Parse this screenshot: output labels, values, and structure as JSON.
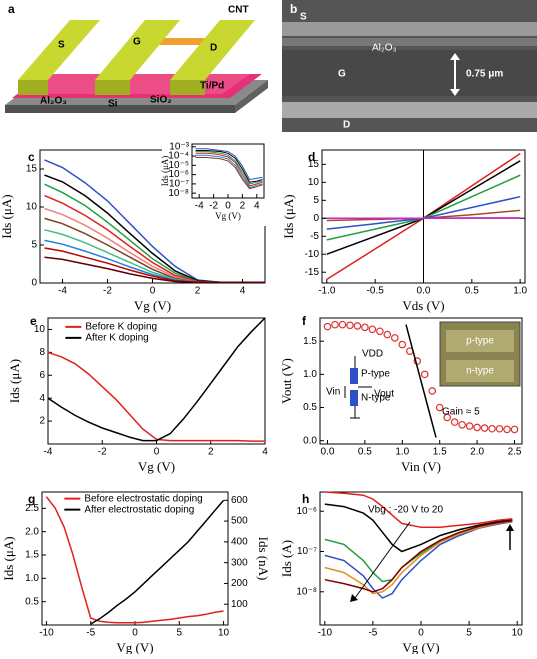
{
  "panel_a": {
    "label": "a",
    "texts": [
      "S",
      "G",
      "D",
      "CNT",
      "Ti/Pd",
      "Al₂O₃",
      "Si",
      "SiO₂"
    ]
  },
  "panel_b": {
    "label": "b",
    "texts": [
      "S",
      "Al₂O₃",
      "G",
      "0.75 μm",
      "D"
    ]
  },
  "chart_data": [
    {
      "type": "line",
      "panel_label": "c",
      "xlabel": "Vg (V)",
      "ylabel": "Ids (μA)",
      "x": [
        -4.8,
        -4,
        -3,
        -2,
        -1,
        0,
        1,
        2,
        3,
        4,
        5
      ],
      "xlim": [
        -5,
        5
      ],
      "ylim": [
        0,
        17.5
      ],
      "xticks": [
        -4,
        -2,
        0,
        2,
        4
      ],
      "yticks": [
        0,
        5,
        10,
        15
      ],
      "series": [
        {
          "color": "#3050c8",
          "values": [
            16.2,
            15.2,
            13.2,
            10.8,
            7.8,
            4.8,
            2.2,
            0.4,
            0.1,
            0.1,
            0.1
          ]
        },
        {
          "color": "#000000",
          "values": [
            14.2,
            13.3,
            11.5,
            9.2,
            6.5,
            3.9,
            1.6,
            0.3,
            0.1,
            0.1,
            0.1
          ]
        },
        {
          "color": "#20a040",
          "values": [
            13.0,
            11.9,
            10.2,
            8.0,
            5.6,
            3.2,
            1.3,
            0.2,
            0.1,
            0.1,
            0.1
          ]
        },
        {
          "color": "#e02020",
          "values": [
            11.5,
            10.5,
            8.9,
            7.0,
            4.8,
            2.7,
            1.0,
            0.2,
            0.1,
            0.1,
            0.1
          ]
        },
        {
          "color": "#f08080",
          "values": [
            9.8,
            9.0,
            7.6,
            5.9,
            4.0,
            2.2,
            0.8,
            0.1,
            0.1,
            0.1,
            0.1
          ]
        },
        {
          "color": "#804020",
          "values": [
            8.5,
            7.8,
            6.5,
            5.0,
            3.4,
            1.8,
            0.6,
            0.1,
            0.1,
            0.1,
            0.1
          ]
        },
        {
          "color": "#40c080",
          "values": [
            7.0,
            6.4,
            5.3,
            4.0,
            2.7,
            1.4,
            0.5,
            0.1,
            0.1,
            0.1,
            0.1
          ]
        },
        {
          "color": "#2080e0",
          "values": [
            5.6,
            5.1,
            4.2,
            3.2,
            2.1,
            1.1,
            0.4,
            0.1,
            0.1,
            0.1,
            0.1
          ]
        },
        {
          "color": "#c00000",
          "values": [
            4.6,
            4.2,
            3.4,
            2.6,
            1.7,
            0.9,
            0.3,
            0.1,
            0.1,
            0.1,
            0.1
          ]
        },
        {
          "color": "#600000",
          "values": [
            3.4,
            3.1,
            2.5,
            1.9,
            1.2,
            0.6,
            0.2,
            0.1,
            0.1,
            0.1,
            0.1
          ]
        }
      ]
    },
    {
      "type": "line",
      "xlabel": "Vg (V)",
      "ylabel": "Ids (μA)",
      "log_y": true,
      "x": [
        -4.5,
        -3,
        -2,
        -1,
        0,
        1,
        2,
        3,
        4,
        4.8
      ],
      "xlim": [
        -5,
        5
      ],
      "ylim": [
        3e-09,
        0.002
      ],
      "xticks": [
        -4,
        -2,
        0,
        2,
        4
      ],
      "yticks": [
        {
          "value": 0.001,
          "label": "10⁻³"
        },
        {
          "value": 0.0001,
          "label": "10⁻⁴"
        },
        {
          "value": 1e-05,
          "label": "10⁻⁵"
        },
        {
          "value": 1e-06,
          "label": "10⁻⁶"
        },
        {
          "value": 1e-07,
          "label": "10⁻⁷"
        },
        {
          "value": 1e-08,
          "label": "10⁻⁸"
        }
      ],
      "series": [
        {
          "color": "#3050c8",
          "values": [
            0.0006,
            0.0006,
            0.0005,
            0.0004,
            0.0003,
            0.0001,
            8e-06,
            3e-07,
            4e-07,
            5e-07
          ]
        },
        {
          "color": "#000000",
          "values": [
            0.0004,
            0.0004,
            0.00035,
            0.0003,
            0.0002,
            6e-05,
            4e-06,
            1.5e-07,
            2e-07,
            3e-07
          ]
        },
        {
          "color": "#20a040",
          "values": [
            0.0003,
            0.0003,
            0.00025,
            0.0002,
            0.00012,
            3e-05,
            2e-06,
            1e-07,
            1.5e-07,
            2e-07
          ]
        },
        {
          "color": "#e02020",
          "values": [
            0.0002,
            0.0002,
            0.00017,
            0.00013,
            8e-05,
            2e-05,
            1e-06,
            6e-08,
            1e-07,
            1.5e-07
          ]
        },
        {
          "color": "#2080e0",
          "values": [
            0.00012,
            0.00012,
            0.0001,
            8e-05,
            5e-05,
            1e-05,
            5e-07,
            4e-08,
            7e-08,
            1e-07
          ]
        },
        {
          "color": "#804020",
          "values": [
            7e-05,
            7e-05,
            6e-05,
            5e-05,
            3e-05,
            6e-06,
            3e-07,
            3e-08,
            5e-08,
            8e-08
          ]
        }
      ]
    },
    {
      "type": "line",
      "panel_label": "d",
      "xlabel": "Vds (V)",
      "ylabel": "Ids (μA)",
      "zero_lines": true,
      "x": [
        -1,
        -0.5,
        0,
        0.5,
        1
      ],
      "xlim": [
        -1.05,
        1.05
      ],
      "ylim": [
        -18,
        19
      ],
      "xticks": [
        {
          "value": -1,
          "label": "-1.0"
        },
        -0.5,
        {
          "value": 0,
          "label": "0.0"
        },
        0.5,
        {
          "value": 1,
          "label": "1.0"
        }
      ],
      "yticks": [
        -15,
        -10,
        -5,
        0,
        5,
        10,
        15
      ],
      "series": [
        {
          "color": "#e02020",
          "values": [
            -17,
            -8.5,
            0,
            9,
            18
          ]
        },
        {
          "color": "#000000",
          "values": [
            -10,
            -5,
            0,
            8,
            16
          ]
        },
        {
          "color": "#20a040",
          "values": [
            -6,
            -3,
            0,
            6,
            12
          ]
        },
        {
          "color": "#3050c8",
          "values": [
            -3,
            -1.5,
            0,
            3,
            6
          ]
        },
        {
          "color": "#a05020",
          "values": [
            -0.6,
            -0.3,
            0,
            1,
            2.2
          ]
        },
        {
          "color": "#d020d0",
          "values": [
            0,
            0,
            0,
            0.1,
            0.1
          ]
        }
      ]
    },
    {
      "type": "line",
      "panel_label": "e",
      "xlabel": "Vg (V)",
      "ylabel": "Ids (μA)",
      "legend": "upper left",
      "x": [
        -4,
        -3.5,
        -3,
        -2.5,
        -2,
        -1.5,
        -1,
        -0.5,
        0,
        0.5,
        1,
        1.5,
        2,
        2.5,
        3,
        3.5,
        4
      ],
      "xlim": [
        -4,
        4
      ],
      "ylim": [
        0,
        11
      ],
      "xticks": [
        -4,
        -2,
        0,
        2,
        4
      ],
      "yticks": [
        2,
        4,
        6,
        8,
        10
      ],
      "series": [
        {
          "name": "Before K doping",
          "color": "#e02020",
          "values": [
            8,
            7.6,
            7.0,
            6.1,
            5,
            3.9,
            2.6,
            1.3,
            0.4,
            0.3,
            0.3,
            0.3,
            0.3,
            0.3,
            0.3,
            0.25,
            0.25
          ]
        },
        {
          "name": "After K doping",
          "color": "#000000",
          "values": [
            4,
            3.2,
            2.5,
            1.9,
            1.4,
            1.0,
            0.6,
            0.3,
            0.3,
            0.9,
            2.2,
            3.7,
            5.3,
            6.9,
            8.5,
            9.8,
            11
          ]
        }
      ]
    },
    {
      "type": "line",
      "panel_label": "f",
      "xlabel": "Vin (V)",
      "ylabel": "Vout (V)",
      "x": [
        0,
        0.1,
        0.2,
        0.3,
        0.4,
        0.5,
        0.6,
        0.7,
        0.8,
        0.9,
        1.0,
        1.1,
        1.2,
        1.3,
        1.4,
        1.5,
        1.6,
        1.7,
        1.8,
        1.9,
        2.0,
        2.1,
        2.2,
        2.3,
        2.4,
        2.5
      ],
      "xlim": [
        -0.1,
        2.6
      ],
      "ylim": [
        -0.05,
        1.85
      ],
      "xticks": [
        {
          "value": 0,
          "label": "0.0"
        },
        0.5,
        {
          "value": 1,
          "label": "1.0"
        },
        1.5,
        {
          "value": 2,
          "label": "2.0"
        },
        2.5
      ],
      "yticks": [
        {
          "value": 0,
          "label": "0.0"
        },
        0.5,
        {
          "value": 1,
          "label": "1.0"
        },
        1.5
      ],
      "series": [
        {
          "color": "#e03030",
          "marker": "circle",
          "values": [
            1.72,
            1.75,
            1.75,
            1.74,
            1.73,
            1.71,
            1.68,
            1.65,
            1.6,
            1.55,
            1.45,
            1.35,
            1.2,
            1.0,
            0.75,
            0.5,
            0.35,
            0.28,
            0.24,
            0.22,
            0.2,
            0.19,
            0.18,
            0.18,
            0.17,
            0.17
          ]
        },
        {
          "color": "#000000",
          "x": [
            1.05,
            1.45
          ],
          "values": [
            1.75,
            0.05
          ]
        }
      ],
      "annotations": [
        "Gain ≈ 5",
        "VDD",
        "P-type",
        "Vin",
        "Vout",
        "N-type",
        "p-type",
        "n-type"
      ]
    },
    {
      "type": "line",
      "panel_label": "g",
      "xlabel": "Vg (V)",
      "ylabel": "Ids (μA)",
      "y2label": "Ids (nA)",
      "legend": "upper center",
      "x": [
        -10,
        -9,
        -8,
        -7,
        -6,
        -5,
        -4,
        -3,
        -2,
        -1,
        0,
        1,
        2,
        3,
        4,
        5,
        6,
        7,
        8,
        9,
        10
      ],
      "xlim": [
        -10.5,
        10.5
      ],
      "ylim": [
        0,
        2.85
      ],
      "y2lim": [
        0,
        640
      ],
      "xticks": [
        -10,
        -5,
        0,
        5,
        10
      ],
      "yticks": [
        0.5,
        {
          "value": 1,
          "label": "1.0"
        },
        1.5,
        {
          "value": 2,
          "label": "2.0"
        },
        2.5
      ],
      "y2ticks": [
        100,
        200,
        300,
        400,
        500,
        600
      ],
      "series": [
        {
          "name": "Before electrostatic doping",
          "color": "#e02020",
          "values": [
            2.75,
            2.5,
            2.1,
            1.5,
            0.8,
            0.15,
            0.08,
            0.06,
            0.05,
            0.05,
            0.05,
            0.06,
            0.08,
            0.1,
            0.12,
            0.15,
            0.18,
            0.2,
            0.23,
            0.27,
            0.3
          ]
        },
        {
          "name": "After electrostatic doping",
          "color": "#000000",
          "axis": "y2",
          "values": [
            null,
            null,
            null,
            null,
            null,
            5,
            30,
            60,
            95,
            125,
            160,
            200,
            240,
            280,
            320,
            360,
            400,
            450,
            500,
            550,
            600
          ]
        }
      ]
    },
    {
      "type": "line",
      "panel_label": "h",
      "xlabel": "Vg (V)",
      "ylabel": "Ids (A)",
      "log_y": true,
      "x": [
        -10,
        -8,
        -6,
        -5,
        -4,
        -3,
        -2,
        0,
        2,
        4,
        6,
        8,
        9.5
      ],
      "xlim": [
        -10.5,
        10.5
      ],
      "ylim": [
        1.5e-09,
        3e-06
      ],
      "xticks": [
        -10,
        -5,
        0,
        5,
        10
      ],
      "yticks": [
        {
          "value": 1e-08,
          "label": "10⁻⁸"
        },
        {
          "value": 1e-07,
          "label": "10⁻⁷"
        },
        {
          "value": 1e-06,
          "label": "10⁻⁶"
        }
      ],
      "series": [
        {
          "color": "#e02020",
          "values": [
            3e-06,
            2.8e-06,
            2.5e-06,
            2e-06,
            1.3e-06,
            8e-07,
            5e-07,
            4e-07,
            4e-07,
            4.5e-07,
            5e-07,
            6e-07,
            6.5e-07
          ]
        },
        {
          "color": "#000000",
          "values": [
            1.5e-06,
            1.3e-06,
            9e-07,
            6e-07,
            3e-07,
            1.5e-07,
            1e-07,
            1.5e-07,
            2.5e-07,
            3.5e-07,
            4.5e-07,
            5.5e-07,
            6e-07
          ]
        },
        {
          "color": "#20a040",
          "values": [
            2e-07,
            1.5e-07,
            6e-08,
            3e-08,
            1.8e-08,
            2e-08,
            4e-08,
            9e-08,
            1.8e-07,
            2.8e-07,
            4e-07,
            5e-07,
            5.5e-07
          ]
        },
        {
          "color": "#3050c8",
          "values": [
            8e-08,
            6e-08,
            2.5e-08,
            1.2e-08,
            7e-09,
            9e-09,
            2e-08,
            6e-08,
            1.5e-07,
            2.5e-07,
            3.8e-07,
            4.8e-07,
            5.5e-07
          ]
        },
        {
          "color": "#e09020",
          "values": [
            4e-08,
            3e-08,
            1.5e-08,
            9e-09,
            1e-08,
            1.5e-08,
            3e-08,
            8e-08,
            1.7e-07,
            2.7e-07,
            3.9e-07,
            5e-07,
            5.6e-07
          ]
        },
        {
          "color": "#800000",
          "values": [
            2e-08,
            1.6e-08,
            1.2e-08,
            1e-08,
            1.2e-08,
            2e-08,
            4e-08,
            1e-07,
            1.9e-07,
            3e-07,
            4.2e-07,
            5.2e-07,
            5.8e-07
          ]
        }
      ],
      "annotations": [
        "Vbg : -20 V to 20"
      ]
    }
  ]
}
